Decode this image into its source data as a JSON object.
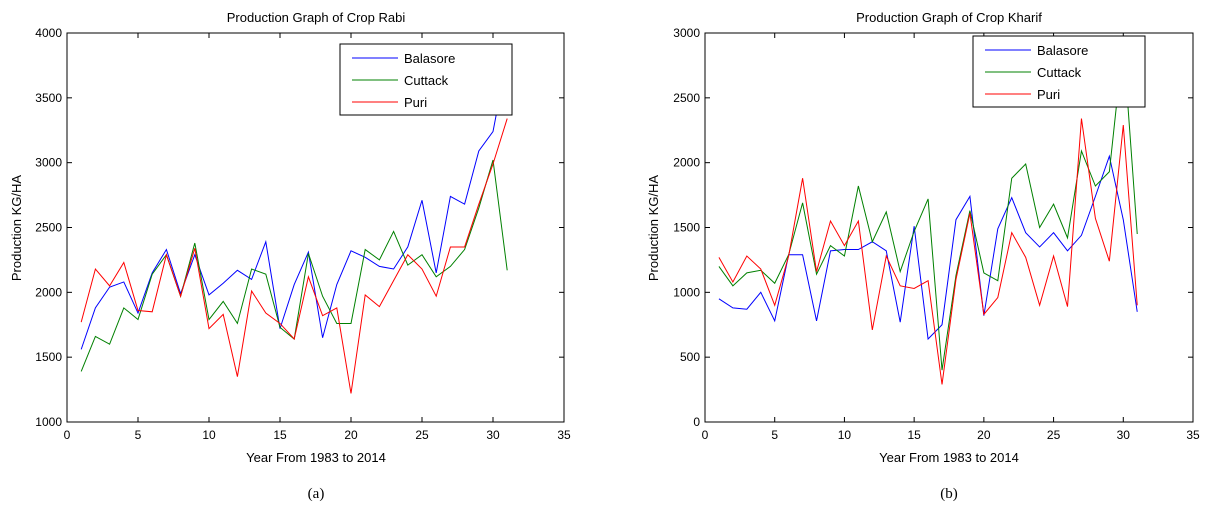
{
  "chart_data": [
    {
      "type": "line",
      "title": "Production Graph of Crop Rabi",
      "xlabel": "Year From 1983 to 2014",
      "ylabel": "Production KG/HA",
      "caption": "(a)",
      "xlim": [
        0,
        35
      ],
      "ylim": [
        1000,
        4000
      ],
      "xticks": [
        0,
        5,
        10,
        15,
        20,
        25,
        30,
        35
      ],
      "yticks": [
        1000,
        1500,
        2000,
        2500,
        3000,
        3500,
        4000
      ],
      "grid": false,
      "legend_position": "top-right",
      "x": [
        1,
        2,
        3,
        4,
        5,
        6,
        7,
        8,
        9,
        10,
        11,
        12,
        13,
        14,
        15,
        16,
        17,
        18,
        19,
        20,
        21,
        22,
        23,
        24,
        25,
        26,
        27,
        28,
        29,
        30,
        31
      ],
      "series": [
        {
          "name": "Balasore",
          "color": "#0000ff",
          "values": [
            1560,
            1880,
            2040,
            2080,
            1840,
            2150,
            2330,
            1990,
            2290,
            1980,
            2070,
            2170,
            2100,
            2390,
            1720,
            2060,
            2310,
            1650,
            2060,
            2320,
            2270,
            2200,
            2180,
            2350,
            2710,
            2150,
            2740,
            2680,
            3090,
            3240,
            3810
          ]
        },
        {
          "name": "Cuttack",
          "color": "#008000",
          "values": [
            1390,
            1660,
            1600,
            1880,
            1790,
            2140,
            2290,
            1970,
            2380,
            1790,
            1930,
            1760,
            2180,
            2140,
            1730,
            1640,
            2300,
            1970,
            1760,
            1760,
            2330,
            2250,
            2470,
            2210,
            2290,
            2120,
            2200,
            2330,
            2650,
            3020,
            2170
          ]
        },
        {
          "name": "Puri",
          "color": "#ff0000",
          "values": [
            1770,
            2180,
            2050,
            2230,
            1860,
            1850,
            2290,
            1970,
            2340,
            1720,
            1830,
            1350,
            2010,
            1840,
            1760,
            1640,
            2120,
            1820,
            1880,
            1220,
            1980,
            1890,
            2090,
            2290,
            2180,
            1970,
            2350,
            2350,
            2680,
            2990,
            3340
          ]
        }
      ]
    },
    {
      "type": "line",
      "title": "Production Graph of Crop Kharif",
      "xlabel": "Year From 1983 to 2014",
      "ylabel": "Production KG/HA",
      "caption": "(b)",
      "xlim": [
        0,
        35
      ],
      "ylim": [
        0,
        3000
      ],
      "xticks": [
        0,
        5,
        10,
        15,
        20,
        25,
        30,
        35
      ],
      "yticks": [
        0,
        500,
        1000,
        1500,
        2000,
        2500,
        3000
      ],
      "grid": false,
      "legend_position": "top-right",
      "x": [
        1,
        2,
        3,
        4,
        5,
        6,
        7,
        8,
        9,
        10,
        11,
        12,
        13,
        14,
        15,
        16,
        17,
        18,
        19,
        20,
        21,
        22,
        23,
        24,
        25,
        26,
        27,
        28,
        29,
        30,
        31
      ],
      "series": [
        {
          "name": "Balasore",
          "color": "#0000ff",
          "values": [
            950,
            880,
            870,
            1000,
            780,
            1290,
            1290,
            780,
            1320,
            1330,
            1330,
            1390,
            1320,
            770,
            1510,
            640,
            750,
            1560,
            1740,
            820,
            1490,
            1730,
            1460,
            1350,
            1460,
            1320,
            1440,
            1740,
            2050,
            1560,
            850
          ]
        },
        {
          "name": "Cuttack",
          "color": "#008000",
          "values": [
            1200,
            1050,
            1150,
            1170,
            1070,
            1290,
            1690,
            1140,
            1360,
            1280,
            1820,
            1390,
            1620,
            1160,
            1470,
            1720,
            400,
            1130,
            1630,
            1150,
            1090,
            1880,
            1990,
            1500,
            1680,
            1420,
            2090,
            1820,
            1930,
            2930,
            1450
          ]
        },
        {
          "name": "Puri",
          "color": "#ff0000",
          "values": [
            1270,
            1080,
            1280,
            1180,
            900,
            1280,
            1880,
            1160,
            1550,
            1360,
            1550,
            710,
            1280,
            1050,
            1030,
            1090,
            290,
            1100,
            1610,
            830,
            960,
            1460,
            1270,
            900,
            1280,
            890,
            2340,
            1570,
            1240,
            2290,
            900
          ]
        }
      ]
    }
  ]
}
